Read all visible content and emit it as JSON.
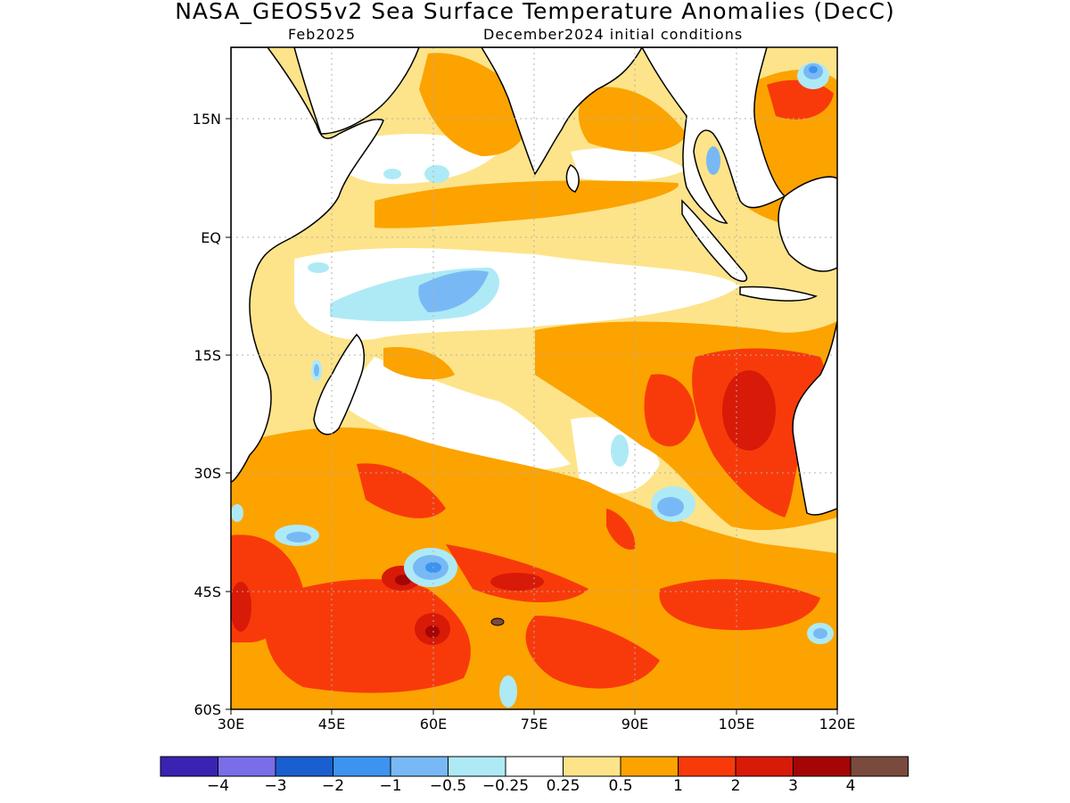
{
  "title": "NASA_GEOS5v2 Sea Surface Temperature Anomalies (DecC)",
  "subtitle_left": "Feb2025",
  "subtitle_right": "December2024 initial conditions",
  "lat_labels": [
    "15N",
    "EQ",
    "15S",
    "30S",
    "45S",
    "60S"
  ],
  "lon_labels": [
    "30E",
    "45E",
    "60E",
    "75E",
    "90E",
    "105E",
    "120E"
  ],
  "colorbar": {
    "colors": [
      "#3a23b3",
      "#7a6ee8",
      "#1a5fcf",
      "#3c93f0",
      "#78b9f5",
      "#aeeaf5",
      "#ffffff",
      "#fde48a",
      "#fca300",
      "#f83a0a",
      "#d81a08",
      "#a50505",
      "#7b4a3e"
    ],
    "labels": [
      "−4",
      "−3",
      "−2",
      "−1",
      "−0.5",
      "−0.25",
      "0.25",
      "0.5",
      "1",
      "2",
      "3",
      "4"
    ]
  },
  "colors": {
    "land_outline": "#000000",
    "land_fill": "#ffffff",
    "grid": "#b0b0b0"
  }
}
